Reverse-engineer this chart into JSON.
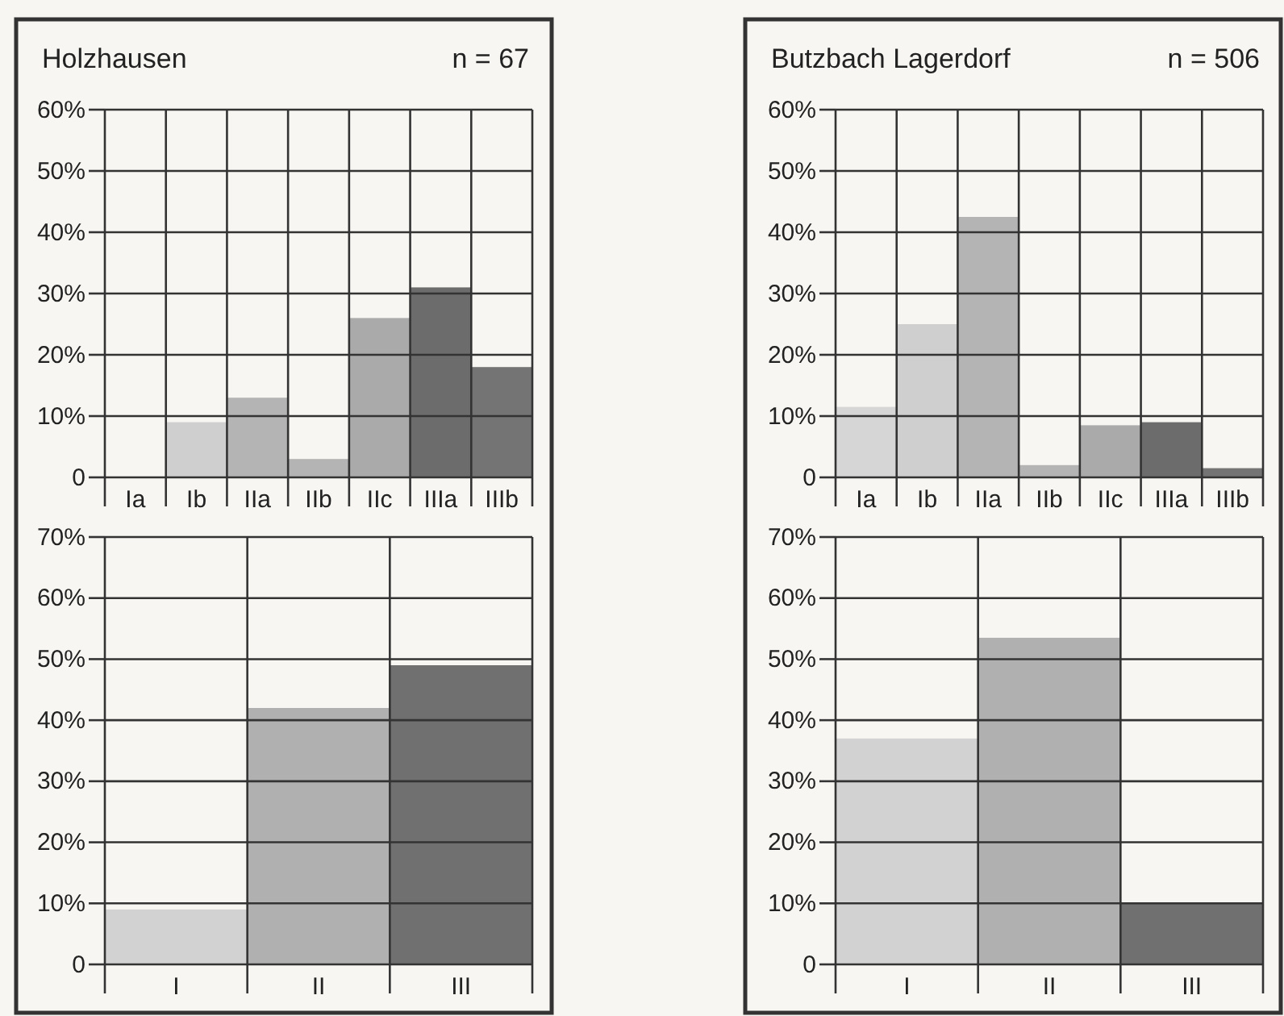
{
  "chart_data": [
    {
      "type": "bar",
      "title": "Holzhausen",
      "annotations": [
        "n = 67"
      ],
      "categories": [
        "Ia",
        "Ib",
        "IIa",
        "IIb",
        "IIc",
        "IIIa",
        "IIIb"
      ],
      "values": [
        0,
        9,
        13,
        3,
        26,
        31,
        18
      ],
      "colors": [
        "#d6d6d6",
        "#cfcfcf",
        "#b4b4b4",
        "#b4b4b4",
        "#aaaaaa",
        "#6c6c6c",
        "#747474"
      ],
      "ylim": [
        0,
        60
      ],
      "yticks": [
        {
          "value": 0,
          "label": "0"
        },
        {
          "value": 10,
          "label": "10%"
        },
        {
          "value": 20,
          "label": "20%"
        },
        {
          "value": 30,
          "label": "30%"
        },
        {
          "value": 40,
          "label": "40%"
        },
        {
          "value": 50,
          "label": "50%"
        },
        {
          "value": 60,
          "label": "60%"
        }
      ],
      "grid": true
    },
    {
      "type": "bar",
      "title": "Butzbach Lagerdorf",
      "annotations": [
        "n = 506"
      ],
      "categories": [
        "Ia",
        "Ib",
        "IIa",
        "IIb",
        "IIc",
        "IIIa",
        "IIIb"
      ],
      "values": [
        11.5,
        25,
        42.5,
        2,
        8.5,
        9,
        1.5
      ],
      "colors": [
        "#d6d6d6",
        "#cfcfcf",
        "#b4b4b4",
        "#b4b4b4",
        "#aaaaaa",
        "#6c6c6c",
        "#747474"
      ],
      "ylim": [
        0,
        60
      ],
      "yticks": [
        {
          "value": 0,
          "label": "0"
        },
        {
          "value": 10,
          "label": "10%"
        },
        {
          "value": 20,
          "label": "20%"
        },
        {
          "value": 30,
          "label": "30%"
        },
        {
          "value": 40,
          "label": "40%"
        },
        {
          "value": 50,
          "label": "50%"
        },
        {
          "value": 60,
          "label": "60%"
        }
      ],
      "grid": true
    },
    {
      "type": "bar",
      "categories": [
        "I",
        "II",
        "III"
      ],
      "values": [
        9,
        42,
        49
      ],
      "colors": [
        "#d2d2d2",
        "#b0b0b0",
        "#707070"
      ],
      "ylim": [
        0,
        70
      ],
      "yticks": [
        {
          "value": 0,
          "label": "0"
        },
        {
          "value": 10,
          "label": "10%"
        },
        {
          "value": 20,
          "label": "20%"
        },
        {
          "value": 30,
          "label": "30%"
        },
        {
          "value": 40,
          "label": "40%"
        },
        {
          "value": 50,
          "label": "50%"
        },
        {
          "value": 60,
          "label": "60%"
        },
        {
          "value": 70,
          "label": "70%"
        }
      ],
      "grid": true
    },
    {
      "type": "bar",
      "categories": [
        "I",
        "II",
        "III"
      ],
      "values": [
        37,
        53.5,
        10
      ],
      "colors": [
        "#d2d2d2",
        "#b0b0b0",
        "#707070"
      ],
      "ylim": [
        0,
        70
      ],
      "yticks": [
        {
          "value": 0,
          "label": "0"
        },
        {
          "value": 10,
          "label": "10%"
        },
        {
          "value": 20,
          "label": "20%"
        },
        {
          "value": 30,
          "label": "30%"
        },
        {
          "value": 40,
          "label": "40%"
        },
        {
          "value": 50,
          "label": "50%"
        },
        {
          "value": 60,
          "label": "60%"
        },
        {
          "value": 70,
          "label": "70%"
        }
      ],
      "grid": true
    }
  ]
}
